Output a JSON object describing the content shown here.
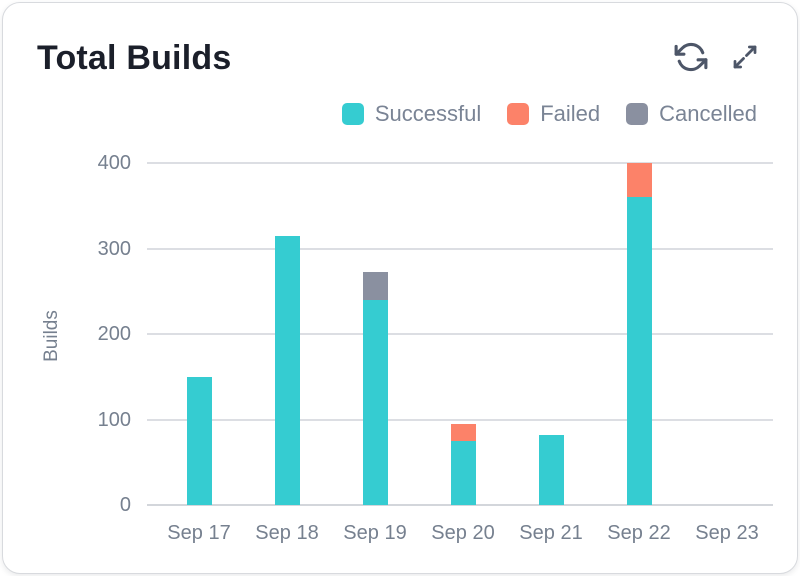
{
  "header": {
    "icons": [
      {
        "name": "refresh-icon",
        "label": "Refresh"
      },
      {
        "name": "expand-icon",
        "label": "Expand"
      }
    ]
  },
  "chart_data": {
    "type": "bar",
    "stacked": true,
    "title": "Total Builds",
    "ylabel": "Builds",
    "xlabel": "",
    "categories": [
      "Sep 17",
      "Sep 18",
      "Sep 19",
      "Sep 20",
      "Sep 21",
      "Sep 22",
      "Sep 23"
    ],
    "series": [
      {
        "name": "Successful",
        "color": "#35ccd1",
        "values": [
          150,
          315,
          240,
          75,
          82,
          360,
          0
        ]
      },
      {
        "name": "Failed",
        "color": "#fc8269",
        "values": [
          0,
          0,
          0,
          20,
          0,
          40,
          0
        ]
      },
      {
        "name": "Cancelled",
        "color": "#8a90a0",
        "values": [
          0,
          0,
          32,
          0,
          0,
          0,
          0
        ]
      }
    ],
    "ylim": [
      0,
      400
    ],
    "yticks": [
      0,
      100,
      200,
      300,
      400
    ],
    "grid": "horizontal",
    "legend_position": "top-right"
  },
  "theme": {
    "title_color": "#1b1f2a",
    "axis_text": "#76808f",
    "legend_text": "#7a8495",
    "grid_color": "#dcdee3",
    "baseline_color": "#d3d6db",
    "icon_color": "#4d5668",
    "card_border": "#d8dade",
    "card_bg": "#ffffff"
  }
}
